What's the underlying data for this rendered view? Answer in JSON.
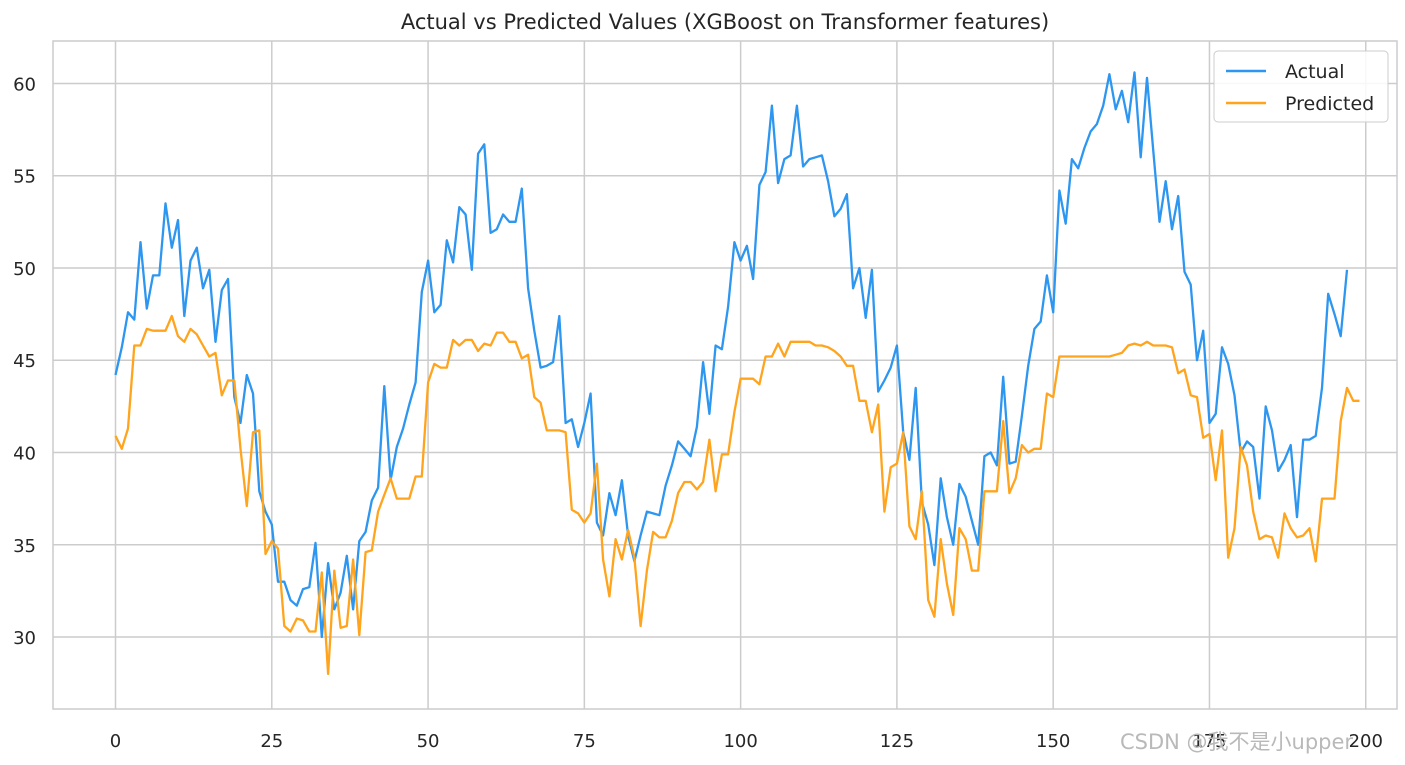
{
  "chart_data": {
    "type": "line",
    "title": "Actual vs Predicted Values (XGBoost on Transformer features)",
    "xlabel": "",
    "ylabel": "",
    "xlim": [
      -10,
      205
    ],
    "ylim": [
      26.1,
      62.3
    ],
    "xticks": [
      0,
      25,
      50,
      75,
      100,
      125,
      150,
      175,
      200
    ],
    "yticks": [
      30,
      35,
      40,
      45,
      50,
      55,
      60
    ],
    "grid": true,
    "legend": "top-right",
    "series": [
      {
        "name": "Actual",
        "color": "#2d96f0",
        "values": [
          44.2,
          45.7,
          47.6,
          47.2,
          51.4,
          47.8,
          49.6,
          49.6,
          53.5,
          51.1,
          52.6,
          47.4,
          50.4,
          51.1,
          48.9,
          49.9,
          46.0,
          48.8,
          49.4,
          43.0,
          41.6,
          44.2,
          43.2,
          37.9,
          36.8,
          36.1,
          33.0,
          33.0,
          32.0,
          31.7,
          32.6,
          32.7,
          35.1,
          30.0,
          34.0,
          31.5,
          32.4,
          34.4,
          31.5,
          35.2,
          35.7,
          37.4,
          38.1,
          43.6,
          38.5,
          40.3,
          41.3,
          42.6,
          43.8,
          48.7,
          50.4,
          47.6,
          48.0,
          51.5,
          50.3,
          53.3,
          52.9,
          49.9,
          56.2,
          56.7,
          51.9,
          52.1,
          52.9,
          52.5,
          52.5,
          54.3,
          48.9,
          46.6,
          44.6,
          44.7,
          44.9,
          47.4,
          41.6,
          41.8,
          40.3,
          41.6,
          43.2,
          36.2,
          35.5,
          37.8,
          36.6,
          38.5,
          35.5,
          34.1,
          35.5,
          36.8,
          36.7,
          36.6,
          38.2,
          39.3,
          40.6,
          40.2,
          39.8,
          41.4,
          44.9,
          42.1,
          45.8,
          45.6,
          47.9,
          51.4,
          50.4,
          51.2,
          49.4,
          54.5,
          55.2,
          58.8,
          54.6,
          55.9,
          56.1,
          58.8,
          55.5,
          55.9,
          56.0,
          56.1,
          54.7,
          52.8,
          53.2,
          54.0,
          48.9,
          50.0,
          47.3,
          49.9,
          43.3,
          43.9,
          44.6,
          45.8,
          41.1,
          39.6,
          43.5,
          37.3,
          36.1,
          33.9,
          38.6,
          36.5,
          35.0,
          38.3,
          37.6,
          36.3,
          35.0,
          39.8,
          40.0,
          39.3,
          44.1,
          39.4,
          39.5,
          42.0,
          44.7,
          46.7,
          47.1,
          49.6,
          47.6,
          54.2,
          52.4,
          55.9,
          55.4,
          56.5,
          57.4,
          57.8,
          58.8,
          60.5,
          58.6,
          59.6,
          57.9,
          60.6,
          56.0,
          60.3,
          56.4,
          52.5,
          54.7,
          52.1,
          53.9,
          49.8,
          49.1,
          45.0,
          46.6,
          41.6,
          42.1,
          45.7,
          44.8,
          43.1,
          40.0,
          40.6,
          40.3,
          37.5,
          42.5,
          41.2,
          39.0,
          39.6,
          40.4,
          36.5,
          40.7,
          40.7,
          40.9,
          43.5,
          48.6,
          47.5,
          46.3,
          49.9
        ]
      },
      {
        "name": "Predicted",
        "color": "#ffa41c",
        "values": [
          40.9,
          40.2,
          41.3,
          45.8,
          45.8,
          46.7,
          46.6,
          46.6,
          46.6,
          47.4,
          46.3,
          46.0,
          46.7,
          46.4,
          45.8,
          45.2,
          45.4,
          43.1,
          43.9,
          43.9,
          40.2,
          37.1,
          41.1,
          41.2,
          34.5,
          35.2,
          34.8,
          30.6,
          30.3,
          31.0,
          30.9,
          30.3,
          30.3,
          33.5,
          28.0,
          33.6,
          30.5,
          30.6,
          34.2,
          30.1,
          34.6,
          34.7,
          36.8,
          37.7,
          38.6,
          37.5,
          37.5,
          37.5,
          38.7,
          38.7,
          43.8,
          44.8,
          44.6,
          44.6,
          46.1,
          45.8,
          46.1,
          46.1,
          45.5,
          45.9,
          45.8,
          46.5,
          46.5,
          46.0,
          46.0,
          45.1,
          45.3,
          43.0,
          42.7,
          41.2,
          41.2,
          41.2,
          41.1,
          36.9,
          36.7,
          36.2,
          36.7,
          39.4,
          34.2,
          32.2,
          35.3,
          34.2,
          35.8,
          34.3,
          30.6,
          33.6,
          35.7,
          35.4,
          35.4,
          36.3,
          37.8,
          38.4,
          38.4,
          38.0,
          38.4,
          40.7,
          37.9,
          39.9,
          39.9,
          42.2,
          44.0,
          44.0,
          44.0,
          43.7,
          45.2,
          45.2,
          45.9,
          45.2,
          46.0,
          46.0,
          46.0,
          46.0,
          45.8,
          45.8,
          45.7,
          45.5,
          45.2,
          44.7,
          44.7,
          42.8,
          42.8,
          41.1,
          42.6,
          36.8,
          39.2,
          39.4,
          41.1,
          36.0,
          35.3,
          37.9,
          32.0,
          31.1,
          35.3,
          32.9,
          31.2,
          35.9,
          35.3,
          33.6,
          33.6,
          37.9,
          37.9,
          37.9,
          41.7,
          37.8,
          38.6,
          40.4,
          40.0,
          40.2,
          40.2,
          43.2,
          43.0,
          45.2,
          45.2,
          45.2,
          45.2,
          45.2,
          45.2,
          45.2,
          45.2,
          45.2,
          45.3,
          45.4,
          45.8,
          45.9,
          45.8,
          46.0,
          45.8,
          45.8,
          45.8,
          45.7,
          44.3,
          44.5,
          43.1,
          43.0,
          40.8,
          41.0,
          38.5,
          41.2,
          34.3,
          35.9,
          40.3,
          39.3,
          36.8,
          35.3,
          35.5,
          35.4,
          34.3,
          36.7,
          35.9,
          35.4,
          35.5,
          35.9,
          34.1,
          37.5,
          37.5,
          37.5,
          41.7,
          43.5,
          42.8,
          42.8
        ]
      }
    ]
  },
  "watermark": "CSDN @我不是小upper"
}
